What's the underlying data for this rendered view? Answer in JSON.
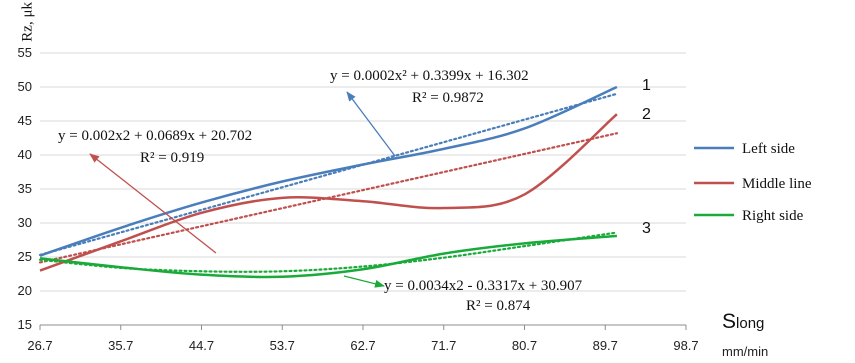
{
  "chart_data": {
    "type": "line",
    "title": "",
    "ylabel": "Rz, μk",
    "xlabel_main": "Slong",
    "xlabel_main_big": "S",
    "xlabel_main_sub": "long",
    "xlabel_unit": "mm/min",
    "xlim": [
      26.7,
      98.7
    ],
    "ylim": [
      15,
      55
    ],
    "x_ticks": [
      "26.7",
      "35.7",
      "44.7",
      "53.7",
      "62.7",
      "71.7",
      "80.7",
      "89.7",
      "98.7"
    ],
    "y_ticks": [
      "15",
      "20",
      "25",
      "30",
      "35",
      "40",
      "45",
      "50",
      "55"
    ],
    "grid": "horizontal",
    "legend_position": "right",
    "series": [
      {
        "name": "Left side",
        "color": "#4a7ebb",
        "x": [
          26.7,
          35.7,
          44.7,
          53.7,
          62.7,
          71.7,
          80.7,
          91.0
        ],
        "y": [
          25.2,
          29.3,
          33.0,
          36.1,
          38.6,
          40.9,
          43.9,
          50.0
        ],
        "trend_x": [
          26.7,
          91.0
        ],
        "trend_y": [
          25.3,
          49.0
        ],
        "curve_number": "1",
        "equation": "y = 0.0002x² + 0.3399x + 16.302",
        "r2": "R² = 0.9872"
      },
      {
        "name": "Middle line",
        "color": "#c0504d",
        "x": [
          26.7,
          35.7,
          44.7,
          53.7,
          62.7,
          71.7,
          80.7,
          91.0
        ],
        "y": [
          23.0,
          27.3,
          31.5,
          33.7,
          33.2,
          32.2,
          34.2,
          46.0
        ],
        "trend_x": [
          26.7,
          91.0
        ],
        "trend_y": [
          24.2,
          43.2
        ],
        "curve_number": "2",
        "equation": "y = 0.002x2 + 0.0689x + 20.702",
        "r2": "R² = 0.919"
      },
      {
        "name": "Right side",
        "color": "#1aaa3a",
        "x": [
          26.7,
          35.7,
          44.7,
          53.7,
          62.7,
          71.7,
          80.7,
          91.0
        ],
        "y": [
          24.8,
          23.5,
          22.4,
          22.1,
          23.2,
          25.5,
          27.0,
          28.1
        ],
        "trend_x": [
          26.7,
          35.7,
          44.7,
          53.7,
          62.7,
          71.7,
          80.7,
          91.0
        ],
        "trend_y": [
          24.6,
          23.4,
          22.9,
          22.9,
          23.6,
          24.9,
          26.6,
          28.6
        ],
        "curve_number": "3",
        "equation": "y = 0.0034x2 - 0.3317x + 30.907",
        "r2": "R² = 0.874"
      }
    ]
  }
}
